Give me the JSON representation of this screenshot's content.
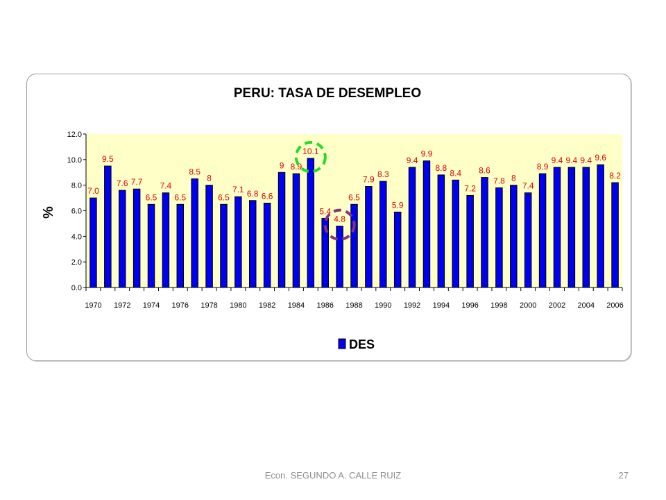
{
  "slide": {
    "footer_author": "Econ. SEGUNDO A. CALLE RUIZ",
    "page_number": "27"
  },
  "colors": {
    "bar": "#0000f0",
    "plot_background": "#ffffc8",
    "data_label": "#dd0000",
    "highlight_max": "#22dd22",
    "highlight_min": "#883377"
  },
  "chart_data": {
    "type": "bar",
    "title": "PERU: TASA DE DESEMPLEO",
    "xlabel": "",
    "ylabel": "%",
    "ylim": [
      0,
      12
    ],
    "yticks": [
      "0.0",
      "2.0",
      "4.0",
      "6.0",
      "8.0",
      "10.0",
      "12.0"
    ],
    "grid": false,
    "legend_position": "bottom",
    "categories": [
      "1970",
      "1971",
      "1972",
      "1973",
      "1974",
      "1975",
      "1976",
      "1977",
      "1978",
      "1979",
      "1980",
      "1981",
      "1982",
      "1983",
      "1984",
      "1985",
      "1986",
      "1987",
      "1988",
      "1989",
      "1990",
      "1991",
      "1992",
      "1993",
      "1994",
      "1995",
      "1996",
      "1997",
      "1998",
      "1999",
      "2000",
      "2001",
      "2002",
      "2003",
      "2004",
      "2005",
      "2006"
    ],
    "tick_labels": [
      "1970",
      "",
      "1972",
      "",
      "1974",
      "",
      "1976",
      "",
      "1978",
      "",
      "1980",
      "",
      "1982",
      "",
      "1984",
      "",
      "1986",
      "",
      "1988",
      "",
      "1990",
      "",
      "1992",
      "",
      "1994",
      "",
      "1996",
      "",
      "1998",
      "",
      "2000",
      "",
      "2002",
      "",
      "2004",
      "",
      "2006"
    ],
    "series": [
      {
        "name": "DES",
        "values": [
          7.0,
          9.5,
          7.6,
          7.7,
          6.5,
          7.4,
          6.5,
          8.5,
          8,
          6.5,
          7.1,
          6.8,
          6.6,
          9,
          8.9,
          10.1,
          5.4,
          4.8,
          6.5,
          7.9,
          8.3,
          5.9,
          9.4,
          9.9,
          8.8,
          8.4,
          7.2,
          8.6,
          7.8,
          8,
          7.4,
          8.9,
          9.4,
          9.4,
          9.4,
          9.6,
          8.2
        ],
        "labels": [
          "7.0",
          "9.5",
          "7.6",
          "7.7",
          "6.5",
          "7.4",
          "6.5",
          "8.5",
          "8",
          "6.5",
          "7.1",
          "6.8",
          "6.6",
          "9",
          "8.9",
          "10.1",
          "5.4",
          "4.8",
          "6.5",
          "7.9",
          "8.3",
          "5.9",
          "9.4",
          "9.9",
          "8.8",
          "8.4",
          "7.2",
          "8.6",
          "7.8",
          "8",
          "7.4",
          "8.9",
          "9.4",
          "9.4",
          "9.4",
          "9.6",
          "8.2"
        ]
      }
    ],
    "annotations": [
      {
        "category": "1985",
        "shape": "dashed-circle",
        "color_key": "highlight_max"
      },
      {
        "category": "1987",
        "shape": "dashed-circle",
        "color_key": "highlight_min"
      }
    ]
  }
}
